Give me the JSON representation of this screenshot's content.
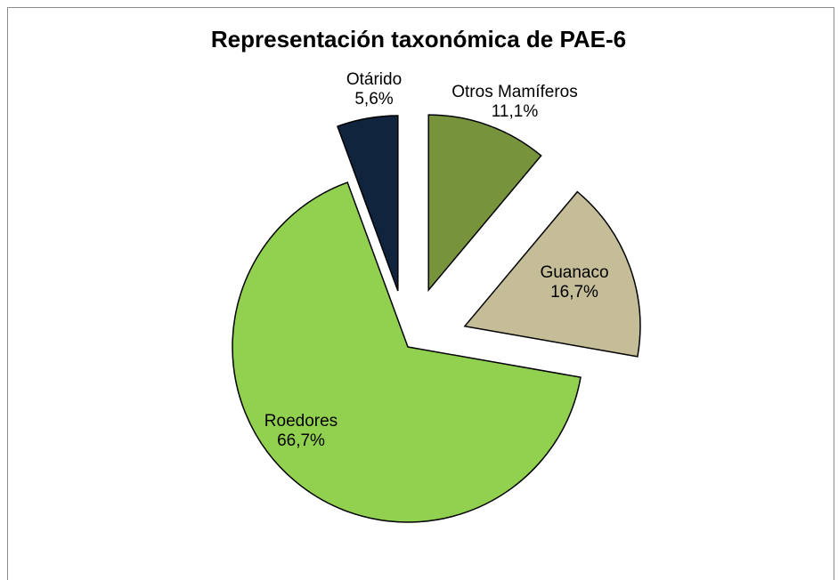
{
  "chart_data": {
    "type": "pie",
    "title": "Representación taxonómica de PAE-6",
    "categories": [
      "Otros Mamíferos",
      "Guanaco",
      "Roedores",
      "Otárido"
    ],
    "values": [
      11.1,
      16.7,
      66.7,
      5.6
    ],
    "value_labels": [
      "11,1%",
      "16,7%",
      "66,7%",
      "5,6%"
    ],
    "colors": [
      "#77933c",
      "#c4bd97",
      "#92d050",
      "#10243e"
    ]
  }
}
